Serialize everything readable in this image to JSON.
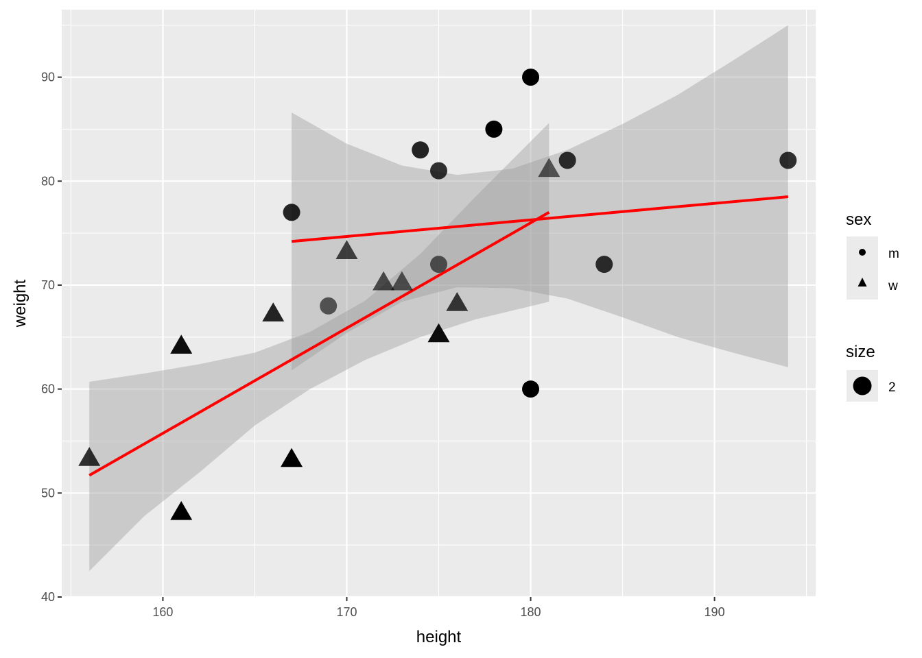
{
  "chart_data": {
    "type": "scatter",
    "title": "",
    "xlabel": "height",
    "ylabel": "weight",
    "xlim": [
      154.5,
      195.5
    ],
    "ylim": [
      40,
      96.5
    ],
    "x_ticks": [
      160,
      170,
      180,
      190
    ],
    "y_ticks": [
      40,
      50,
      60,
      70,
      80,
      90
    ],
    "grid": true,
    "legend_position": "right",
    "points": [
      {
        "x": 156,
        "y": 53.3,
        "sex": "w",
        "alpha": 0.8
      },
      {
        "x": 161,
        "y": 64.1,
        "sex": "w",
        "alpha": 0.95
      },
      {
        "x": 161,
        "y": 48.1,
        "sex": "w",
        "alpha": 1.0
      },
      {
        "x": 166,
        "y": 67.2,
        "sex": "w",
        "alpha": 0.85
      },
      {
        "x": 167,
        "y": 53.2,
        "sex": "w",
        "alpha": 1.0
      },
      {
        "x": 170,
        "y": 73.2,
        "sex": "w",
        "alpha": 0.7
      },
      {
        "x": 172,
        "y": 70.2,
        "sex": "w",
        "alpha": 0.65
      },
      {
        "x": 173,
        "y": 70.2,
        "sex": "w",
        "alpha": 0.6
      },
      {
        "x": 175,
        "y": 65.2,
        "sex": "w",
        "alpha": 0.95
      },
      {
        "x": 176,
        "y": 68.2,
        "sex": "w",
        "alpha": 0.75
      },
      {
        "x": 181,
        "y": 81.1,
        "sex": "w",
        "alpha": 0.6
      },
      {
        "x": 167,
        "y": 77,
        "sex": "m",
        "alpha": 0.85
      },
      {
        "x": 169,
        "y": 68,
        "sex": "m",
        "alpha": 0.6
      },
      {
        "x": 174,
        "y": 83,
        "sex": "m",
        "alpha": 0.85
      },
      {
        "x": 175,
        "y": 81,
        "sex": "m",
        "alpha": 0.8
      },
      {
        "x": 175,
        "y": 72,
        "sex": "m",
        "alpha": 0.6
      },
      {
        "x": 178,
        "y": 85,
        "sex": "m",
        "alpha": 1.0
      },
      {
        "x": 180,
        "y": 90,
        "sex": "m",
        "alpha": 1.0
      },
      {
        "x": 180,
        "y": 60,
        "sex": "m",
        "alpha": 1.0
      },
      {
        "x": 182,
        "y": 82,
        "sex": "m",
        "alpha": 0.8
      },
      {
        "x": 184,
        "y": 72,
        "sex": "m",
        "alpha": 0.8
      },
      {
        "x": 194,
        "y": 82,
        "sex": "m",
        "alpha": 0.8
      }
    ],
    "fits": [
      {
        "group": "m",
        "line": [
          [
            167,
            74.2
          ],
          [
            194,
            78.5
          ]
        ],
        "ribbon_x": [
          167,
          170,
          173,
          176,
          179,
          182,
          185,
          188,
          191,
          194
        ],
        "ribbon_upper": [
          86.6,
          83.6,
          81.5,
          80.6,
          81.2,
          83.0,
          85.5,
          88.3,
          91.6,
          95.0
        ],
        "ribbon_lower": [
          61.8,
          65.4,
          68.4,
          69.8,
          69.7,
          68.7,
          66.9,
          65.0,
          63.5,
          62.1
        ]
      },
      {
        "group": "w",
        "line": [
          [
            156,
            51.7
          ],
          [
            181,
            77.0
          ]
        ],
        "ribbon_x": [
          156,
          159,
          162,
          165,
          168,
          171,
          174,
          177,
          181
        ],
        "ribbon_upper": [
          60.7,
          61.5,
          62.4,
          63.5,
          65.5,
          68.5,
          73.0,
          78.5,
          85.6
        ],
        "ribbon_lower": [
          42.5,
          47.8,
          52.0,
          56.5,
          60.0,
          62.8,
          65.0,
          66.7,
          68.4
        ]
      }
    ],
    "line_color": "#ff0000",
    "ribbon_color": "#999999",
    "point_color": "#000000",
    "legend": {
      "sex": {
        "title": "sex",
        "items": [
          {
            "label": "m",
            "shape": "circle"
          },
          {
            "label": "w",
            "shape": "triangle"
          }
        ]
      },
      "size": {
        "title": "size",
        "items": [
          {
            "label": "2",
            "shape": "circle"
          }
        ]
      }
    }
  }
}
